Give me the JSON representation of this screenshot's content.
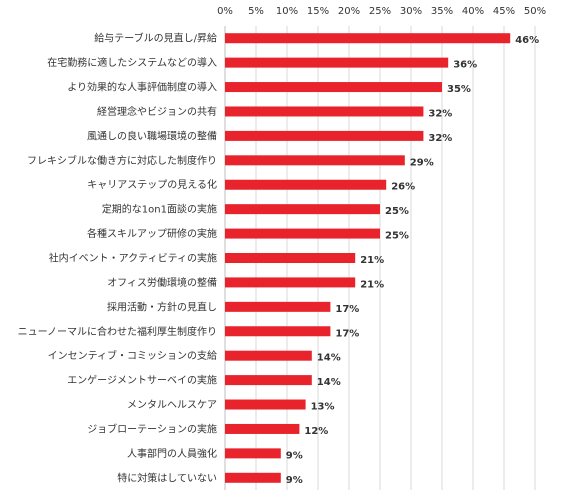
{
  "chart_data": {
    "type": "bar",
    "orientation": "horizontal",
    "categories": [
      "給与テーブルの見直し/昇給",
      "在宅勤務に適したシステムなどの導入",
      "より効果的な人事評価制度の導入",
      "経営理念やビジョンの共有",
      "風通しの良い職場環境の整備",
      "フレキシブルな働き方に対応した制度作り",
      "キャリアステップの見える化",
      "定期的な1on1面談の実施",
      "各種スキルアップ研修の実施",
      "社内イベント・アクティビティの実施",
      "オフィス労働環境の整備",
      "採用活動・方針の見直し",
      "ニューノーマルに合わせた福利厚生制度作り",
      "インセンティブ・コミッションの支給",
      "エンゲージメントサーベイの実施",
      "メンタルヘルスケア",
      "ジョブローテーションの実施",
      "人事部門の人員強化",
      "特に対策はしていない"
    ],
    "values": [
      46,
      36,
      35,
      32,
      32,
      29,
      26,
      25,
      25,
      21,
      21,
      17,
      17,
      14,
      14,
      13,
      12,
      9,
      9
    ],
    "value_labels": [
      "46%",
      "36%",
      "35%",
      "32%",
      "32%",
      "29%",
      "26%",
      "25%",
      "25%",
      "21%",
      "21%",
      "17%",
      "17%",
      "14%",
      "14%",
      "13%",
      "12%",
      "9%",
      "9%"
    ],
    "x_ticks": [
      0,
      5,
      10,
      15,
      20,
      25,
      30,
      35,
      40,
      45,
      50
    ],
    "x_tick_labels": [
      "0%",
      "5%",
      "10%",
      "15%",
      "20%",
      "25%",
      "30%",
      "35%",
      "40%",
      "45%",
      "50%"
    ],
    "xlim": [
      0,
      50
    ],
    "x_axis_position": "top",
    "grid": true,
    "legend": "none",
    "bar_color": "#e8232b",
    "grid_color": "#d9d9d9"
  }
}
